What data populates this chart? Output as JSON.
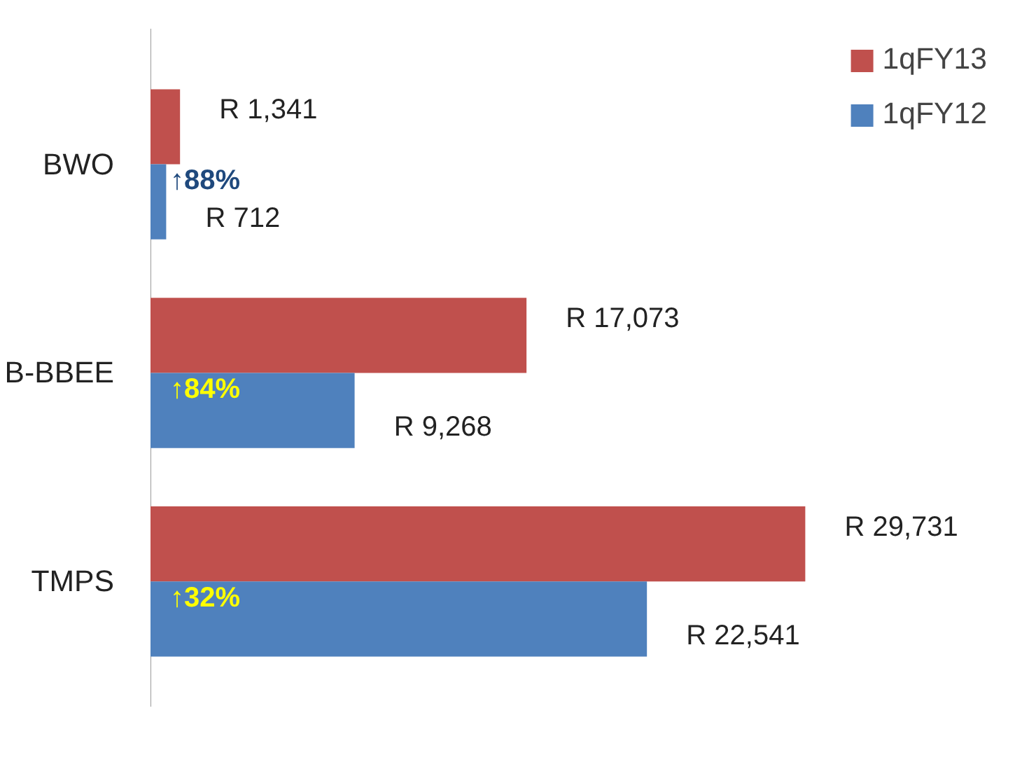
{
  "chart_data": {
    "type": "bar",
    "orientation": "horizontal",
    "categories": [
      "BWO",
      "B-BBEE",
      "TMPS"
    ],
    "series": [
      {
        "name": "1qFY13",
        "color": "#c0504d",
        "values": [
          1341,
          17073,
          29731
        ],
        "value_labels": [
          "R 1,341",
          "R 17,073",
          "R 29,731"
        ]
      },
      {
        "name": "1qFY12",
        "color": "#4f81bd",
        "values": [
          712,
          9268,
          22541
        ],
        "value_labels": [
          "R 712",
          "R 9,268",
          "R 22,541"
        ]
      }
    ],
    "annotations": [
      "↑88%",
      "↑84%",
      "↑32%"
    ],
    "legend": "top right",
    "grid": false,
    "tick_labels": "y"
  }
}
